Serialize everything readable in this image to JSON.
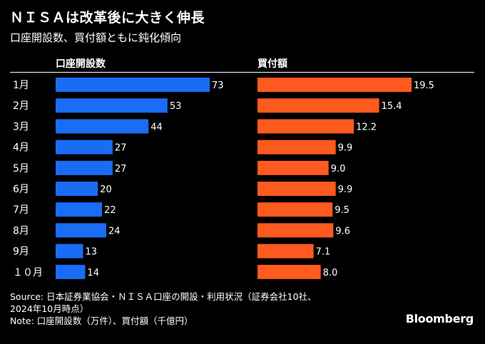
{
  "title": "ＮＩＳＡは改革後に大きく伸長",
  "subtitle": "口座開設数、買付額ともに鈍化傾向",
  "colors": {
    "accounts": "#1a6cf5",
    "purchases": "#ff5a1f"
  },
  "chart_data": [
    {
      "type": "bar",
      "orientation": "horizontal",
      "title": "口座開設数",
      "categories": [
        "1月",
        "2月",
        "3月",
        "4月",
        "5月",
        "6月",
        "7月",
        "8月",
        "9月",
        "１０月"
      ],
      "values": [
        73,
        53,
        44,
        27,
        27,
        20,
        22,
        24,
        13,
        14
      ],
      "value_labels": [
        "73",
        "53",
        "44",
        "27",
        "27",
        "20",
        "22",
        "24",
        "13",
        "14"
      ],
      "unit": "万件"
    },
    {
      "type": "bar",
      "orientation": "horizontal",
      "title": "買付額",
      "categories": [
        "1月",
        "2月",
        "3月",
        "4月",
        "5月",
        "6月",
        "7月",
        "8月",
        "9月",
        "１０月"
      ],
      "values": [
        19.5,
        15.4,
        12.2,
        9.9,
        9.0,
        9.9,
        9.5,
        9.6,
        7.1,
        8.0
      ],
      "value_labels": [
        "19.5",
        "15.4",
        "12.2",
        "9.9",
        "9.0",
        "9.9",
        "9.5",
        "9.6",
        "7.1",
        "8.0"
      ],
      "unit": "千億円"
    }
  ],
  "footer": {
    "source_line1": "Source: 日本証券業協会・ＮＩＳＡ口座の開設・利用状況（証券会社10社、",
    "source_line2": "2024年10月時点）",
    "note": "Note: 口座開設数（万件）、買付額（千億円）",
    "brand": "Bloomberg"
  }
}
